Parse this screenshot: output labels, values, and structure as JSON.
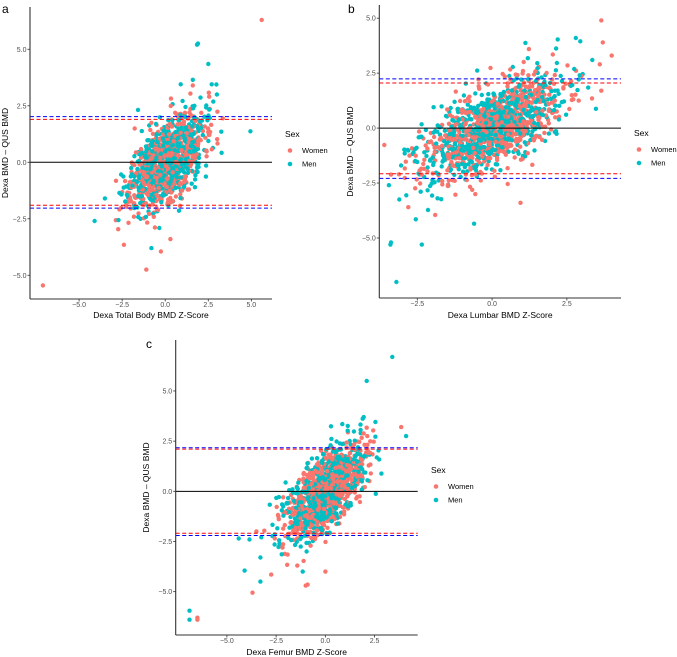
{
  "colors": {
    "women": "#F8766D",
    "men": "#00BFC4",
    "upper_lower_women": "#FF0000",
    "upper_lower_men": "#0000FF",
    "zero": "#000000"
  },
  "chart_data": [
    {
      "type": "scatter",
      "panel": "a",
      "xlabel": "Dexa Total Body BMD Z-Score",
      "ylabel": "Dexa BMD – QUS BMD",
      "xlim": [
        -7.85,
        6.2
      ],
      "ylim": [
        -6.05,
        6.87
      ],
      "xticks": [
        -5.0,
        -2.5,
        0.0,
        2.5,
        5.0
      ],
      "xtick_labels": [
        "−5.0",
        "−2.5",
        "0.0",
        "2.5",
        "5.0"
      ],
      "yticks": [
        -5.0,
        -2.5,
        0.0,
        2.5,
        5.0
      ],
      "ytick_labels": [
        "−5.0",
        "−2.5",
        "0.0",
        "2.5",
        "5.0"
      ],
      "legend": {
        "title": "Sex",
        "entries": [
          "Women",
          "Men"
        ],
        "position": "right"
      },
      "hlines": {
        "zero": 0,
        "women_limits": [
          1.9,
          -1.9
        ],
        "men_limits": [
          2.02,
          -2.03
        ]
      },
      "cloud": {
        "n_per_group": 650,
        "x_mean": 0.1,
        "x_sd": 1.05,
        "slope": 0.55,
        "intercept": 0.0,
        "resid_sd": 0.85,
        "seed": 11
      },
      "outliers": {
        "Women": [
          [
            5.6,
            6.3
          ],
          [
            -7.1,
            -5.45
          ],
          [
            -1.1,
            -4.75
          ],
          [
            -0.25,
            -3.95
          ],
          [
            -2.4,
            -3.65
          ],
          [
            0.3,
            -3.4
          ],
          [
            1.6,
            3.4
          ]
        ],
        "Men": [
          [
            1.9,
            5.25
          ],
          [
            1.85,
            5.2
          ],
          [
            2.5,
            4.35
          ],
          [
            -4.1,
            -2.6
          ],
          [
            -3.5,
            -1.6
          ],
          [
            1.6,
            3.65
          ],
          [
            2.7,
            3.45
          ],
          [
            3.0,
            3.0
          ],
          [
            -0.8,
            -3.8
          ],
          [
            0.9,
            3.45
          ]
        ]
      }
    },
    {
      "type": "scatter",
      "panel": "b",
      "xlabel": "Dexa Lumbar BMD Z-Score",
      "ylabel": "Dexa BMD – QUS BMD",
      "xlim": [
        -3.77,
        4.31
      ],
      "ylim": [
        -7.73,
        5.6
      ],
      "xticks": [
        -2.5,
        0.0,
        2.5
      ],
      "xtick_labels": [
        "−2.5",
        "0.0",
        "2.5"
      ],
      "yticks": [
        -5.0,
        -2.5,
        0.0,
        2.5,
        5.0
      ],
      "ytick_labels": [
        "−5.0",
        "−2.5",
        "0.0",
        "2.5",
        "5.0"
      ],
      "legend": {
        "title": "Sex",
        "entries": [
          "Women",
          "Men"
        ],
        "position": "right"
      },
      "hlines": {
        "zero": 0,
        "women_limits": [
          2.05,
          -2.08
        ],
        "men_limits": [
          2.24,
          -2.29
        ]
      },
      "cloud": {
        "n_per_group": 700,
        "x_mean": 0.0,
        "x_sd": 1.15,
        "slope": 0.6,
        "intercept": 0.0,
        "resid_sd": 0.9,
        "seed": 23
      },
      "outliers": {
        "Women": [
          [
            3.65,
            4.9
          ],
          [
            3.7,
            3.9
          ],
          [
            4.0,
            3.3
          ],
          [
            -2.8,
            -3.6
          ],
          [
            0.95,
            -3.4
          ],
          [
            3.6,
            2.9
          ],
          [
            3.65,
            1.7
          ],
          [
            -1.9,
            -3.95
          ]
        ],
        "Men": [
          [
            -3.4,
            -5.3
          ],
          [
            -3.38,
            -5.2
          ],
          [
            -3.2,
            -7.0
          ],
          [
            -2.35,
            -5.3
          ],
          [
            -3.45,
            -2.6
          ],
          [
            2.8,
            4.1
          ],
          [
            2.95,
            3.95
          ],
          [
            -2.55,
            -4.15
          ],
          [
            -0.6,
            -4.35
          ],
          [
            3.35,
            3.1
          ],
          [
            -3.1,
            -3.25
          ]
        ]
      }
    },
    {
      "type": "scatter",
      "panel": "c",
      "xlabel": "Dexa Femur BMD Z-Score",
      "ylabel": "Dexa BMD – QUS BMD",
      "xlim": [
        -7.6,
        4.69
      ],
      "ylim": [
        -7.16,
        7.54
      ],
      "xticks": [
        -5.0,
        -2.5,
        0.0,
        2.5
      ],
      "xtick_labels": [
        "−5.0",
        "−2.5",
        "0.0",
        "2.5"
      ],
      "yticks": [
        -5.0,
        -2.5,
        0.0,
        2.5,
        5.0
      ],
      "ytick_labels": [
        "−5.0",
        "−2.5",
        "0.0",
        "2.5",
        "5.0"
      ],
      "legend": {
        "title": "Sex",
        "entries": [
          "Women",
          "Men"
        ],
        "position": "right"
      },
      "hlines": {
        "zero": 0,
        "women_limits": [
          2.1,
          -2.09
        ],
        "men_limits": [
          2.17,
          -2.2
        ]
      },
      "cloud": {
        "n_per_group": 650,
        "x_mean": 0.0,
        "x_sd": 1.0,
        "slope": 0.75,
        "intercept": 0.0,
        "resid_sd": 0.9,
        "seed": 37
      },
      "outliers": {
        "Women": [
          [
            -6.5,
            -6.3
          ],
          [
            -6.5,
            -6.4
          ],
          [
            -3.7,
            -5.05
          ],
          [
            -2.75,
            -4.15
          ],
          [
            -1.0,
            -4.7
          ],
          [
            -0.9,
            -4.65
          ],
          [
            0.0,
            -4.0
          ],
          [
            3.85,
            3.2
          ],
          [
            -3.5,
            -2.0
          ]
        ],
        "Men": [
          [
            3.4,
            6.7
          ],
          [
            2.1,
            5.5
          ],
          [
            -6.9,
            -5.95
          ],
          [
            -6.9,
            -6.4
          ],
          [
            -4.1,
            -3.95
          ],
          [
            -3.3,
            -4.5
          ],
          [
            -4.4,
            -2.35
          ],
          [
            -3.85,
            -2.4
          ],
          [
            -3.3,
            -3.3
          ],
          [
            4.1,
            2.75
          ],
          [
            1.95,
            3.7
          ],
          [
            -1.15,
            -4.0
          ]
        ]
      }
    }
  ],
  "panel_letters": [
    "a",
    "b",
    "c"
  ]
}
